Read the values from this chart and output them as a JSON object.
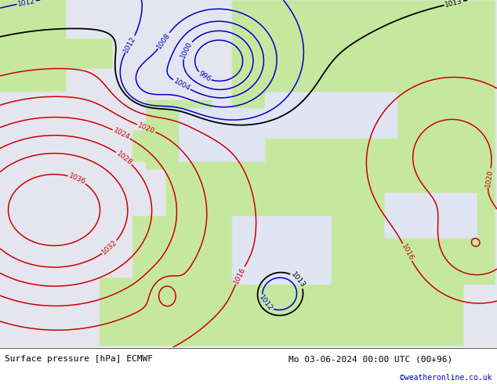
{
  "title_left": "Surface pressure [hPa] ECMWF",
  "title_right": "Mo 03-06-2024 00:00 UTC (00+96)",
  "credit": "©weatheronline.co.uk",
  "ocean_color": "#e8e8f0",
  "land_color": "#c8e8a0",
  "mountain_color": "#b0c890",
  "coast_color": "#888888",
  "bottom_bar_color": "#ffffff",
  "figsize": [
    6.34,
    4.9
  ],
  "dpi": 100,
  "font_size_bottom": 8,
  "blue_levels": [
    996,
    1000,
    1004,
    1008,
    1012
  ],
  "black_levels": [
    1013
  ],
  "red_levels": [
    1016,
    1020,
    1024,
    1028,
    1032,
    1036
  ],
  "contour_lw": 1.1,
  "label_fontsize": 6.5
}
